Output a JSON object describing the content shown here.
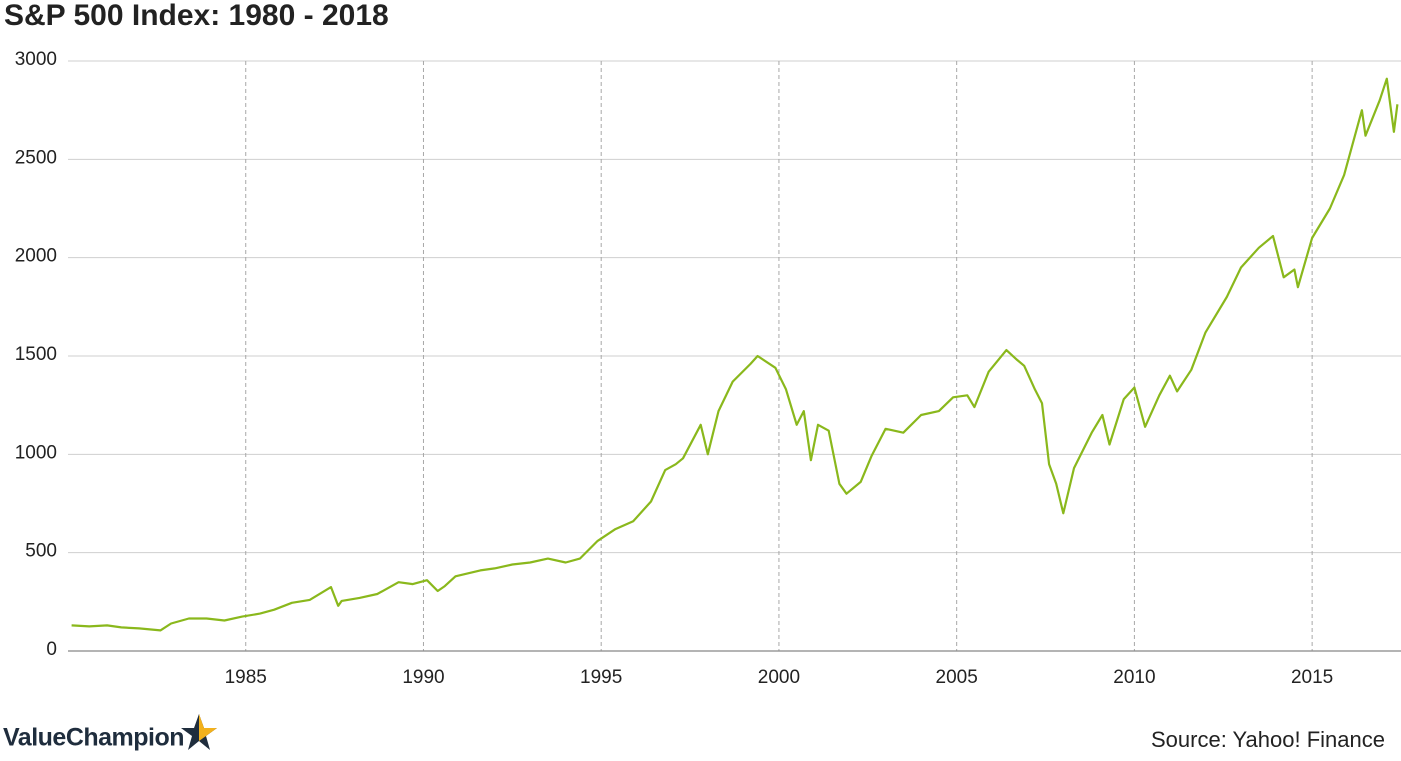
{
  "chart_data": {
    "type": "line",
    "title": "S&P 500 Index: 1980 - 2018",
    "source": "Source: Yahoo! Finance",
    "logo": "ValueChampion",
    "series": [
      {
        "name": "S&P 500",
        "color": "#8ab81c",
        "x": [
          1980.1,
          1980.6,
          1981.1,
          1981.5,
          1982.0,
          1982.6,
          1982.9,
          1983.4,
          1983.9,
          1984.4,
          1984.9,
          1985.4,
          1985.8,
          1986.3,
          1986.8,
          1987.4,
          1987.6,
          1987.7,
          1988.2,
          1988.7,
          1989.3,
          1989.7,
          1990.1,
          1990.4,
          1990.6,
          1990.9,
          1991.6,
          1992.0,
          1992.5,
          1993.0,
          1993.5,
          1994.0,
          1994.4,
          1994.9,
          1995.4,
          1995.9,
          1996.4,
          1996.8,
          1997.1,
          1997.3,
          1997.8,
          1998.0,
          1998.3,
          1998.7,
          1999.2,
          1999.4,
          1999.9,
          2000.2,
          2000.5,
          2000.7,
          2000.9,
          2001.1,
          2001.4,
          2001.7,
          2001.9,
          2002.3,
          2002.6,
          2003.0,
          2003.5,
          2004.0,
          2004.5,
          2004.9,
          2005.3,
          2005.5,
          2005.9,
          2006.4,
          2006.7,
          2006.9,
          2007.2,
          2007.4,
          2007.6,
          2007.8,
          2008.0,
          2008.3,
          2008.8,
          2009.1,
          2009.3,
          2009.7,
          2010.0,
          2010.3,
          2010.7,
          2011.0,
          2011.2,
          2011.6,
          2012.0,
          2012.6,
          2013.0,
          2013.5,
          2013.9,
          2014.2,
          2014.5,
          2014.6,
          2015.0,
          2015.5,
          2015.9,
          2016.4,
          2016.5,
          2016.9,
          2017.1,
          2017.3,
          2017.4
        ],
        "values": [
          130,
          125,
          130,
          120,
          115,
          105,
          140,
          165,
          165,
          155,
          175,
          190,
          210,
          245,
          260,
          325,
          230,
          255,
          270,
          290,
          350,
          340,
          360,
          305,
          330,
          380,
          410,
          420,
          440,
          450,
          470,
          450,
          470,
          560,
          620,
          660,
          760,
          920,
          950,
          980,
          1150,
          1000,
          1220,
          1370,
          1460,
          1500,
          1440,
          1330,
          1150,
          1220,
          970,
          1150,
          1120,
          850,
          800,
          860,
          990,
          1130,
          1110,
          1200,
          1220,
          1290,
          1300,
          1240,
          1420,
          1530,
          1480,
          1450,
          1330,
          1260,
          950,
          850,
          700,
          930,
          1110,
          1200,
          1050,
          1280,
          1340,
          1140,
          1300,
          1400,
          1320,
          1430,
          1620,
          1800,
          1950,
          2050,
          2110,
          1900,
          1940,
          1850,
          2100,
          2250,
          2420,
          2750,
          2620,
          2800,
          2910,
          2640,
          2780
        ]
      }
    ],
    "xlim": [
      1980,
      2017.5
    ],
    "xticks": [
      1985,
      1990,
      1995,
      2000,
      2005,
      2010,
      2015
    ],
    "ylim": [
      0,
      3000
    ],
    "yticks": [
      0,
      500,
      1000,
      1500,
      2000,
      2500,
      3000
    ],
    "grid": true
  }
}
